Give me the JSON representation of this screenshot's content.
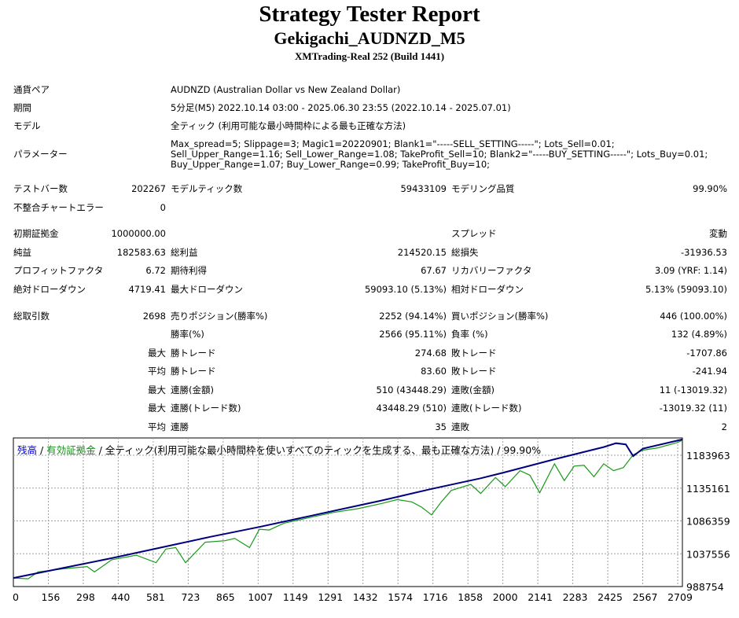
{
  "report": {
    "title": "Strategy Tester Report",
    "subtitle": "Gekigachi_AUDNZD_M5",
    "build": "XMTrading-Real 252 (Build 1441)"
  },
  "settings": [
    {
      "label": "通貨ペア",
      "value": "AUDNZD (Australian Dollar vs New Zealand Dollar)"
    },
    {
      "label": "期間",
      "value": "5分足(M5) 2022.10.14 03:00 - 2025.06.30 23:55 (2022.10.14 - 2025.07.01)"
    },
    {
      "label": "モデル",
      "value": "全ティック (利用可能な最小時間枠による最も正確な方法)"
    },
    {
      "label": "パラメーター",
      "value": "Max_spread=5; Slippage=3; Magic1=20220901; Blank1=\"-----SELL_SETTING-----\"; Lots_Sell=0.01; Sell_Upper_Range=1.16; Sell_Lower_Range=1.08; TakeProfit_Sell=10; Blank2=\"-----BUY_SETTING-----\"; Lots_Buy=0.01; Buy_Upper_Range=1.07; Buy_Lower_Range=0.99; TakeProfit_Buy=10;"
    }
  ],
  "bars": {
    "test_bars_label": "テストバー数",
    "test_bars_value": "202267",
    "model_ticks_label": "モデルティック数",
    "model_ticks_value": "59433109",
    "quality_label": "モデリング品質",
    "quality_value": "99.90%",
    "mismatch_label": "不整合チャートエラー",
    "mismatch_value": "0"
  },
  "results": {
    "deposit_label": "初期証拠金",
    "deposit_value": "1000000.00",
    "spread_label": "スプレッド",
    "spread_value": "変動",
    "net_label": "純益",
    "net_value": "182583.63",
    "gross_profit_label": "総利益",
    "gross_profit_value": "214520.15",
    "gross_loss_label": "総損失",
    "gross_loss_value": "-31936.53",
    "pf_label": "プロフィットファクタ",
    "pf_value": "6.72",
    "expected_label": "期待利得",
    "expected_value": "67.67",
    "recovery_label": "リカバリーファクタ",
    "recovery_value": "3.09 (YRF: 1.14)",
    "abs_dd_label": "絶対ドローダウン",
    "abs_dd_value": "4719.41",
    "max_dd_label": "最大ドローダウン",
    "max_dd_value": "59093.10 (5.13%)",
    "rel_dd_label": "相対ドローダウン",
    "rel_dd_value": "5.13% (59093.10)",
    "trades_label": "総取引数",
    "trades_value": "2698",
    "short_label": "売りポジション(勝率%)",
    "short_value": "2252 (94.14%)",
    "long_label": "買いポジション(勝率%)",
    "long_value": "446 (100.00%)",
    "winrate_label": "勝率(%)",
    "winrate_value": "2566 (95.11%)",
    "lossrate_label": "負率 (%)",
    "lossrate_value": "132 (4.89%)",
    "largest_label": "最大",
    "largest_win_label": "勝トレード",
    "largest_win_value": "274.68",
    "largest_loss_label": "敗トレード",
    "largest_loss_value": "-1707.86",
    "average_label": "平均",
    "avg_win_label": "勝トレード",
    "avg_win_value": "83.60",
    "avg_loss_label": "敗トレード",
    "avg_loss_value": "-241.94",
    "max1_label": "最大",
    "max_cw_money_label": "連勝(金額)",
    "max_cw_money_value": "510 (43448.29)",
    "max_cl_money_label": "連敗(金額)",
    "max_cl_money_value": "11 (-13019.32)",
    "max2_label": "最大",
    "max_cw_trades_label": "連勝(トレード数)",
    "max_cw_trades_value": "43448.29 (510)",
    "max_cl_trades_label": "連敗(トレード数)",
    "max_cl_trades_value": "-13019.32 (11)",
    "avg2_label": "平均",
    "avg_cw_label": "連勝",
    "avg_cw_value": "35",
    "avg_cl_label": "連敗",
    "avg_cl_value": "2"
  },
  "chart_legend": {
    "balance": "残高",
    "sep1": "/",
    "equity": "有効証拠金",
    "rest": "/ 全ティック(利用可能な最小時間枠を使いすべてのティックを生成する、最も正確な方法) / 99.90%"
  },
  "chart_data": {
    "type": "line",
    "colors": {
      "balance": "#00007f",
      "equity": "#1a9a1a",
      "grid": "#a0a0a0",
      "frame": "#000000"
    },
    "x_ticks": [
      "0",
      "156",
      "298",
      "440",
      "581",
      "723",
      "865",
      "1007",
      "1149",
      "1291",
      "1432",
      "1574",
      "1716",
      "1858",
      "2000",
      "2141",
      "2283",
      "2425",
      "2567",
      "2709"
    ],
    "y_ticks": [
      "1183963",
      "1135161",
      "1086359",
      "1037556",
      "988754"
    ],
    "x_range": [
      0,
      2720
    ],
    "y_range": [
      988754,
      1183963
    ],
    "series": [
      {
        "name": "残高",
        "x": [
          0,
          200,
          400,
          600,
          800,
          1000,
          1200,
          1400,
          1500,
          1700,
          1900,
          2000,
          2200,
          2400,
          2450,
          2490,
          2520,
          2560,
          2720
        ],
        "y": [
          1000000,
          1013000,
          1026000,
          1040000,
          1054000,
          1067000,
          1081000,
          1095000,
          1102000,
          1117000,
          1131000,
          1139000,
          1156000,
          1172000,
          1177000,
          1175500,
          1160000,
          1170000,
          1182000
        ]
      },
      {
        "name": "有効証拠金",
        "x": [
          0,
          60,
          100,
          200,
          300,
          330,
          400,
          500,
          580,
          620,
          660,
          700,
          780,
          860,
          900,
          960,
          1000,
          1040,
          1100,
          1200,
          1300,
          1400,
          1500,
          1560,
          1620,
          1660,
          1700,
          1740,
          1780,
          1860,
          1900,
          1960,
          2000,
          2060,
          2100,
          2140,
          2200,
          2240,
          2280,
          2320,
          2360,
          2400,
          2440,
          2480,
          2520,
          2560,
          2620,
          2700,
          2720
        ],
        "y": [
          1000000,
          999000,
          1008000,
          1012000,
          1015000,
          1008000,
          1024000,
          1030000,
          1020000,
          1038000,
          1040000,
          1020000,
          1047000,
          1049000,
          1052000,
          1040000,
          1064000,
          1063000,
          1072000,
          1079000,
          1086000,
          1091000,
          1098000,
          1103000,
          1100000,
          1093000,
          1083000,
          1100000,
          1115000,
          1123000,
          1111000,
          1132000,
          1120000,
          1141000,
          1135000,
          1112000,
          1150000,
          1128000,
          1147000,
          1148000,
          1133000,
          1150000,
          1141000,
          1145000,
          1162000,
          1168000,
          1171000,
          1178000,
          1181000
        ]
      }
    ]
  }
}
